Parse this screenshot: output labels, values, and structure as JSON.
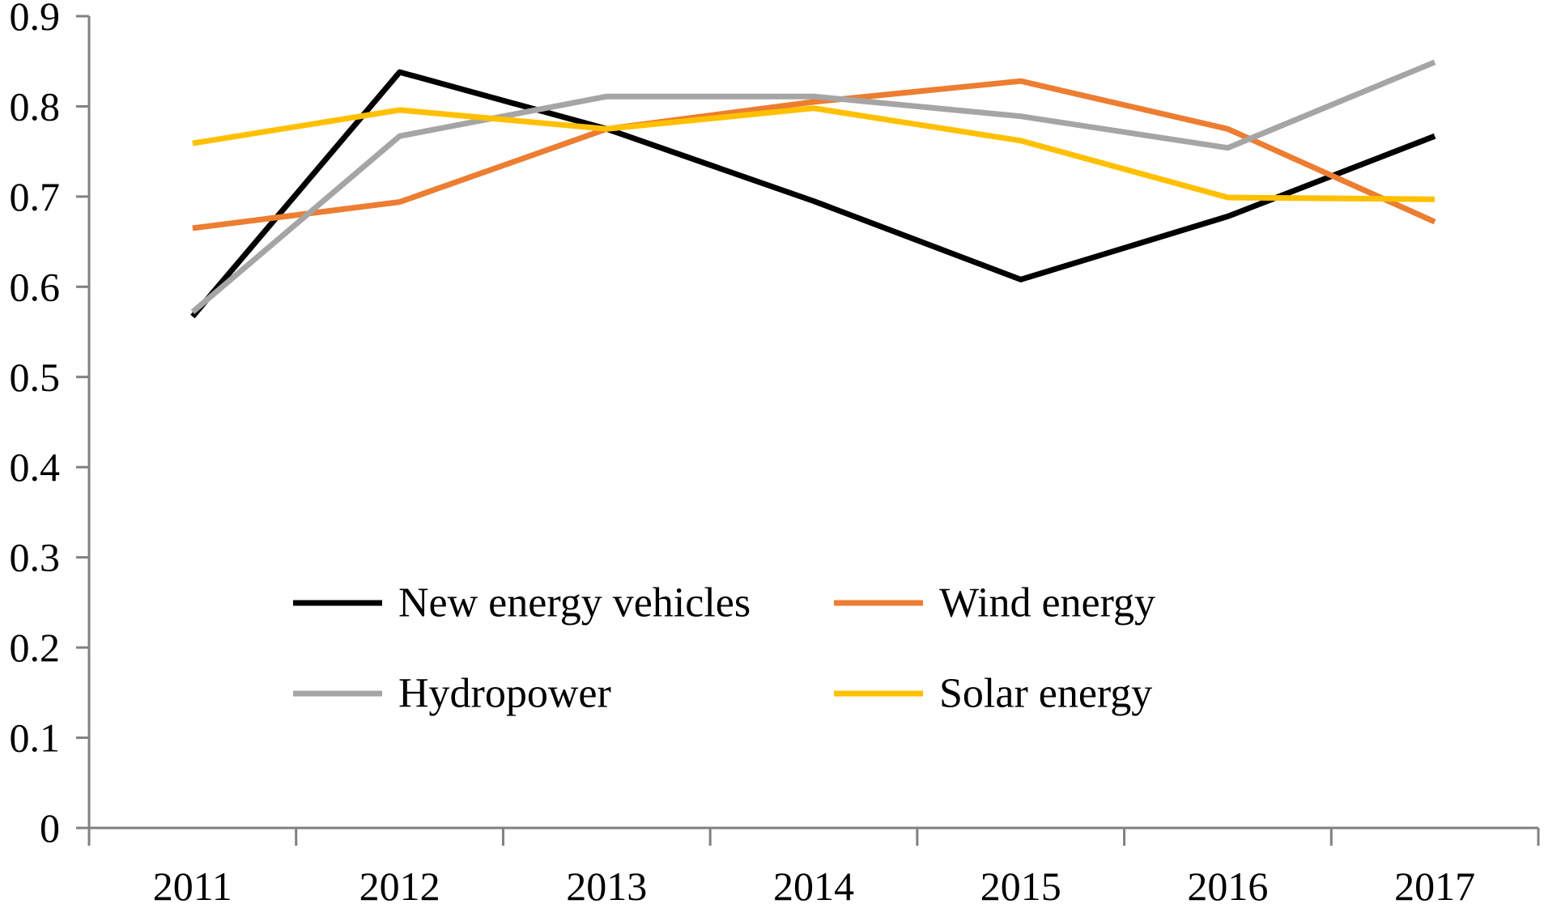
{
  "chart_data": {
    "type": "line",
    "title": "",
    "xlabel": "",
    "ylabel": "",
    "categories": [
      "2011",
      "2012",
      "2013",
      "2014",
      "2015",
      "2016",
      "2017"
    ],
    "ylim": [
      0,
      0.9
    ],
    "yticks": [
      "0",
      "0.1",
      "0.2",
      "0.3",
      "0.4",
      "0.5",
      "0.6",
      "0.7",
      "0.8",
      "0.9"
    ],
    "grid": false,
    "legend_position": "center-bottom",
    "series": [
      {
        "name": "New energy vehicles",
        "color": "#000000",
        "values": [
          0.567,
          0.838,
          0.775,
          0.695,
          0.608,
          0.678,
          0.767
        ]
      },
      {
        "name": "Wind energy",
        "color": "#ED7D31",
        "values": [
          0.665,
          0.694,
          0.775,
          0.805,
          0.828,
          0.775,
          0.672
        ]
      },
      {
        "name": "Hydropower",
        "color": "#A5A5A5",
        "values": [
          0.572,
          0.767,
          0.811,
          0.811,
          0.789,
          0.754,
          0.849
        ]
      },
      {
        "name": "Solar energy",
        "color": "#FFC000",
        "values": [
          0.759,
          0.796,
          0.775,
          0.798,
          0.762,
          0.699,
          0.697
        ]
      }
    ]
  }
}
